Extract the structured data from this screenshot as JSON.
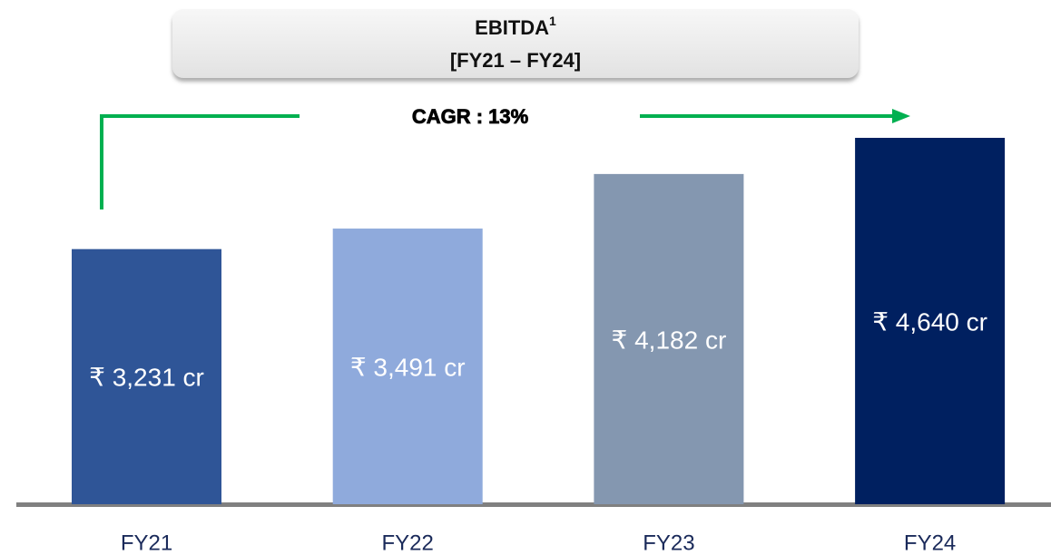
{
  "chart_data": {
    "type": "bar",
    "title": "EBITDA",
    "title_footnote_mark": "1",
    "subtitle": "[FY21 – FY24]",
    "annotation": "CAGR : 13%",
    "categories": [
      "FY21",
      "FY22",
      "FY23",
      "FY24"
    ],
    "values": [
      3231,
      3491,
      4182,
      4640
    ],
    "value_labels": [
      "₹ 3,231 cr",
      "₹ 3,491 cr",
      "₹ 4,182 cr",
      "₹ 4,640 cr"
    ],
    "colors": [
      "#2f5597",
      "#8faadc",
      "#8497b0",
      "#002060"
    ]
  }
}
